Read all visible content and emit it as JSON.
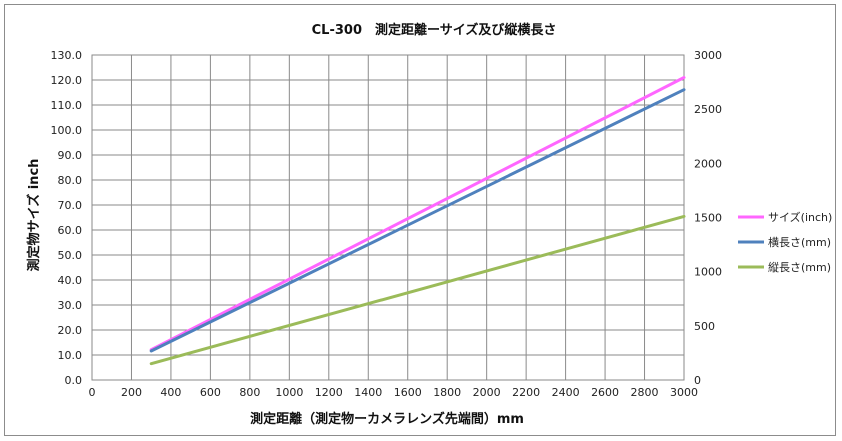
{
  "chart_data": {
    "type": "line",
    "title": "CL-300　測定距離ーサイズ及び縦横長さ",
    "xlabel": "測定距離（測定物ーカメラレンズ先端間）mm",
    "ylabel": "測定物サイズ inch",
    "x_ticks": [
      "0",
      "200",
      "400",
      "600",
      "800",
      "1000",
      "1200",
      "1400",
      "1600",
      "1800",
      "2000",
      "2200",
      "2400",
      "2600",
      "2800",
      "3000"
    ],
    "y_left_ticks": [
      "0.0",
      "10.0",
      "20.0",
      "30.0",
      "40.0",
      "50.0",
      "60.0",
      "70.0",
      "80.0",
      "90.0",
      "100.0",
      "110.0",
      "120.0",
      "130.0"
    ],
    "y_right_ticks": [
      "0",
      "500",
      "1000",
      "1500",
      "2000",
      "2500",
      "3000"
    ],
    "xlim": [
      0,
      3000
    ],
    "ylim_left": [
      0,
      130
    ],
    "ylim_right": [
      0,
      3000
    ],
    "grid": true,
    "legend_position": "right",
    "series": [
      {
        "name": "サイズ(inch)",
        "axis": "left",
        "color": "#ff66ff",
        "x": [
          300,
          3000
        ],
        "y": [
          12.1,
          121.0
        ]
      },
      {
        "name": "横長さ(mm)",
        "axis": "right",
        "color": "#4f81bd",
        "x": [
          300,
          3000
        ],
        "y": [
          268,
          2680
        ]
      },
      {
        "name": "縦長さ(mm)",
        "axis": "right",
        "color": "#9bbb59",
        "x": [
          300,
          3000
        ],
        "y": [
          151,
          1510
        ]
      }
    ]
  }
}
